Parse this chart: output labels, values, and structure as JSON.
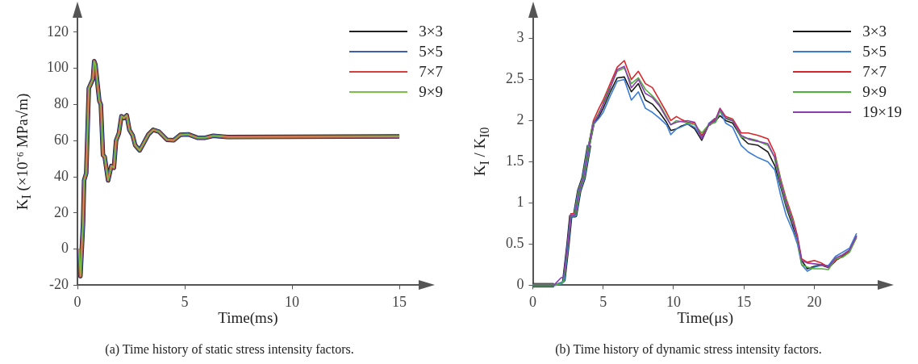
{
  "chart_data": [
    {
      "type": "line",
      "xlabel": "Time(ms)",
      "ylabel": "K$_{I}$ (×10⁻⁶ MPa√m)",
      "annotations": [
        "(a) Time history of static stress intensity factors."
      ],
      "xlim": [
        0,
        15.9
      ],
      "ylim": [
        -20,
        128
      ],
      "xticks": [
        0,
        5,
        10,
        15
      ],
      "yticks": [
        -20,
        0,
        20,
        40,
        60,
        80,
        100,
        120
      ],
      "legend": "top right",
      "marker": "none",
      "line_style": "solid",
      "x": [
        0.07,
        0.14,
        0.26,
        0.31,
        0.41,
        0.53,
        0.72,
        0.78,
        0.84,
        1.02,
        1.09,
        1.19,
        1.27,
        1.43,
        1.58,
        1.7,
        1.8,
        1.93,
        2.05,
        2.17,
        2.3,
        2.42,
        2.57,
        2.69,
        2.9,
        3.06,
        3.31,
        3.53,
        3.8,
        4.17,
        4.48,
        4.79,
        5.16,
        5.59,
        5.96,
        6.33,
        6.64,
        7.0,
        15.0
      ],
      "series": [
        {
          "name": "3×3",
          "color": "#222222",
          "values": [
            0,
            -15,
            14,
            38,
            42,
            89,
            94,
            104,
            102,
            82,
            80,
            52,
            51,
            38,
            46,
            45,
            60,
            64,
            73.5,
            72.5,
            74,
            66,
            63,
            57.5,
            54.6,
            58,
            63.5,
            66,
            65,
            60.5,
            60.2,
            63.2,
            63.5,
            61.6,
            61.6,
            62.7,
            62.4,
            62,
            62.3
          ]
        },
        {
          "name": "5×5",
          "color": "#3e5fb0",
          "values": [
            0,
            -15,
            14,
            38,
            42,
            89,
            94,
            104,
            102,
            82,
            80,
            52,
            51,
            38,
            46,
            45,
            60,
            64,
            73.5,
            72.5,
            74,
            66,
            63,
            57.5,
            54.6,
            58,
            63.5,
            66,
            65,
            60.5,
            60.2,
            63.2,
            63.5,
            61.6,
            61.6,
            62.7,
            62.4,
            62,
            62.3
          ]
        },
        {
          "name": "7×7",
          "color": "#d6403a",
          "values": [
            0,
            -15,
            14,
            38,
            42,
            89,
            94,
            104,
            102,
            82,
            80,
            52,
            51,
            38,
            46,
            45,
            60,
            64,
            73.5,
            72.5,
            74,
            66,
            63,
            57.5,
            54.6,
            58,
            63.5,
            66,
            65,
            60.5,
            60.2,
            63.2,
            63.5,
            61.6,
            61.6,
            62.7,
            62.4,
            62,
            62.3
          ]
        },
        {
          "name": "9×9",
          "color": "#7bbf46",
          "values": [
            0,
            -15,
            14,
            38,
            42,
            89,
            94,
            104,
            102,
            82,
            80,
            52,
            51,
            38,
            46,
            45,
            60,
            64,
            73.5,
            72.5,
            74,
            66,
            63,
            57.5,
            54.6,
            58,
            63.5,
            66,
            65,
            60.5,
            60.2,
            63.2,
            63.5,
            61.6,
            61.6,
            62.7,
            62.4,
            62,
            62.3
          ]
        }
      ]
    },
    {
      "type": "line",
      "xlabel": "Time(μs)",
      "ylabel": "K$_{I}$ / K$_{I0}$",
      "annotations": [
        "(b) Time history of dynamic stress intensity factors."
      ],
      "xlim": [
        0,
        24.5
      ],
      "ylim": [
        0,
        3.25
      ],
      "xticks": [
        0,
        5,
        10,
        15,
        20
      ],
      "yticks": [
        0,
        0.5,
        1,
        1.5,
        2,
        2.5,
        3
      ],
      "legend": "top right",
      "marker": "none",
      "line_style": "solid",
      "x": [
        0,
        1.5,
        2.0,
        2.2,
        2.5,
        2.7,
        3.0,
        3.3,
        3.6,
        4.0,
        4.3,
        4.7,
        5.0,
        5.5,
        6.0,
        6.5,
        7.0,
        7.5,
        8.0,
        8.5,
        9.0,
        9.5,
        9.8,
        10.2,
        10.5,
        11.0,
        11.5,
        12.0,
        12.5,
        13.0,
        13.3,
        13.7,
        14.2,
        14.8,
        15.3,
        16.0,
        16.7,
        17.2,
        17.6,
        18.0,
        18.5,
        18.8,
        19.1,
        19.5,
        20.0,
        20.5,
        21.0,
        21.5,
        22.0,
        22.5,
        23.0
      ],
      "series": [
        {
          "name": "3×3",
          "color": "#1a1a1a",
          "values": [
            0,
            0,
            0.03,
            0.05,
            0.5,
            0.85,
            0.85,
            1.15,
            1.3,
            1.7,
            1.95,
            2.05,
            2.15,
            2.35,
            2.52,
            2.53,
            2.35,
            2.45,
            2.25,
            2.2,
            2.1,
            1.98,
            1.88,
            1.9,
            1.93,
            1.96,
            1.9,
            1.76,
            1.95,
            2.0,
            2.06,
            2.0,
            1.97,
            1.8,
            1.72,
            1.7,
            1.62,
            1.45,
            1.2,
            0.95,
            0.7,
            0.55,
            0.3,
            0.2,
            0.23,
            0.25,
            0.22,
            0.3,
            0.35,
            0.42,
            0.6
          ]
        },
        {
          "name": "5×5",
          "color": "#3a7bd5",
          "values": [
            0,
            0,
            0.02,
            0.05,
            0.5,
            0.85,
            0.85,
            1.15,
            1.3,
            1.7,
            1.95,
            2.03,
            2.1,
            2.3,
            2.48,
            2.5,
            2.25,
            2.35,
            2.15,
            2.1,
            2.03,
            1.95,
            1.83,
            1.9,
            1.92,
            1.96,
            1.92,
            1.8,
            1.95,
            2.02,
            2.12,
            1.97,
            1.92,
            1.7,
            1.62,
            1.55,
            1.5,
            1.4,
            1.1,
            0.85,
            0.65,
            0.5,
            0.25,
            0.17,
            0.22,
            0.24,
            0.24,
            0.35,
            0.4,
            0.45,
            0.63
          ]
        },
        {
          "name": "7×7",
          "color": "#d7262b",
          "values": [
            null,
            null,
            null,
            null,
            0.5,
            0.87,
            0.87,
            1.17,
            1.32,
            1.72,
            2.0,
            2.15,
            2.25,
            2.45,
            2.65,
            2.73,
            2.5,
            2.6,
            2.45,
            2.4,
            2.25,
            2.1,
            2.0,
            2.05,
            2.02,
            1.98,
            1.97,
            1.82,
            1.95,
            2.02,
            2.15,
            2.05,
            2.02,
            1.85,
            1.85,
            1.82,
            1.78,
            1.6,
            1.3,
            1.05,
            0.8,
            0.6,
            0.32,
            0.28,
            0.3,
            0.27,
            0.22,
            0.3,
            0.36,
            0.42,
            0.58
          ]
        },
        {
          "name": "9×9",
          "color": "#4fb03a",
          "values": [
            0,
            0,
            0.02,
            0.05,
            0.5,
            0.85,
            0.85,
            1.15,
            1.3,
            1.7,
            1.97,
            2.1,
            2.2,
            2.4,
            2.6,
            2.64,
            2.45,
            2.52,
            2.38,
            2.3,
            2.2,
            2.05,
            1.95,
            2.0,
            1.99,
            1.97,
            1.95,
            1.85,
            1.95,
            1.98,
            2.12,
            2.03,
            2.0,
            1.8,
            1.78,
            1.75,
            1.7,
            1.55,
            1.25,
            1.0,
            0.75,
            0.55,
            0.25,
            0.22,
            0.2,
            0.2,
            0.19,
            0.32,
            0.34,
            0.4,
            0.58
          ]
        },
        {
          "name": "19×19",
          "color": "#8a3fae",
          "values": [
            0,
            0,
            0.09,
            0.1,
            0.52,
            0.85,
            0.85,
            1.15,
            1.3,
            1.7,
            1.97,
            2.08,
            2.2,
            2.4,
            2.62,
            2.66,
            2.4,
            2.5,
            2.33,
            2.28,
            2.18,
            2.03,
            1.95,
            1.98,
            1.99,
            2.0,
            1.98,
            1.78,
            1.95,
            2.02,
            2.14,
            2.03,
            2.0,
            1.82,
            1.78,
            1.75,
            1.72,
            1.55,
            1.25,
            1.0,
            0.75,
            0.57,
            0.3,
            0.27,
            0.26,
            0.25,
            0.22,
            0.33,
            0.37,
            0.43,
            0.6
          ]
        }
      ]
    }
  ]
}
